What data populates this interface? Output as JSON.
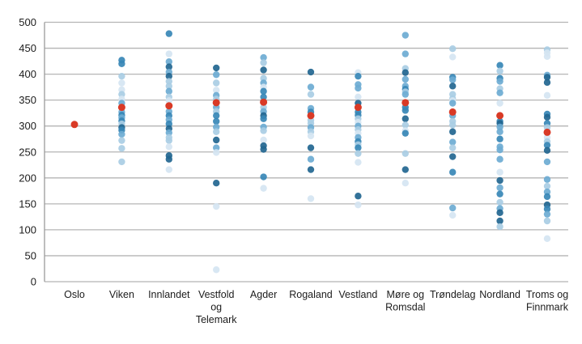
{
  "chart_data": {
    "type": "scatter",
    "title": "",
    "xlabel": "",
    "ylabel": "",
    "ylim": [
      0,
      500
    ],
    "yticks": [
      0,
      50,
      100,
      150,
      200,
      250,
      300,
      350,
      400,
      450,
      500
    ],
    "grid": true,
    "legend": false,
    "colors": {
      "palette": {
        "1": "#d5e5f2",
        "2": "#a9cde4",
        "3": "#6cabd3",
        "4": "#3787b6",
        "5": "#226690"
      },
      "mean": "#d93a26",
      "grid_line": "#b5b5b5",
      "axis_line": "#9b9b9b",
      "text": "#1c1c1c"
    },
    "categories": [
      {
        "label": "Oslo",
        "lines": [
          "Oslo"
        ]
      },
      {
        "label": "Viken",
        "lines": [
          "Viken"
        ]
      },
      {
        "label": "Innlandet",
        "lines": [
          "Innlandet"
        ]
      },
      {
        "label": "Vestfold og Telemark",
        "lines": [
          "Vestfold",
          "og",
          "Telemark"
        ]
      },
      {
        "label": "Agder",
        "lines": [
          "Agder"
        ]
      },
      {
        "label": "Rogaland",
        "lines": [
          "Rogaland"
        ]
      },
      {
        "label": "Vestland",
        "lines": [
          "Vestland"
        ]
      },
      {
        "label": "Møre og Romsdal",
        "lines": [
          "Møre og",
          "Romsdal"
        ]
      },
      {
        "label": "Trøndelag",
        "lines": [
          "Trøndelag"
        ]
      },
      {
        "label": "Nordland",
        "lines": [
          "Nordland"
        ]
      },
      {
        "label": "Troms og Finnmark",
        "lines": [
          "Troms og",
          "Finnmark"
        ]
      }
    ],
    "series": [
      {
        "name": "Oslo",
        "mean": 303,
        "points": []
      },
      {
        "name": "Viken",
        "mean": 336,
        "points": [
          [
            427,
            4
          ],
          [
            420,
            4
          ],
          [
            396,
            2
          ],
          [
            383,
            1
          ],
          [
            370,
            1
          ],
          [
            361,
            2
          ],
          [
            352,
            1
          ],
          [
            344,
            3
          ],
          [
            327,
            3
          ],
          [
            321,
            4
          ],
          [
            316,
            3
          ],
          [
            310,
            4
          ],
          [
            304,
            2
          ],
          [
            297,
            5
          ],
          [
            292,
            4
          ],
          [
            284,
            3
          ],
          [
            272,
            2
          ],
          [
            257,
            2
          ],
          [
            231,
            2
          ]
        ]
      },
      {
        "name": "Innlandet",
        "mean": 339,
        "points": [
          [
            478,
            4
          ],
          [
            439,
            1
          ],
          [
            424,
            3
          ],
          [
            414,
            5
          ],
          [
            404,
            3
          ],
          [
            396,
            5
          ],
          [
            386,
            2
          ],
          [
            377,
            2
          ],
          [
            367,
            3
          ],
          [
            356,
            2
          ],
          [
            349,
            1
          ],
          [
            328,
            3
          ],
          [
            320,
            4
          ],
          [
            312,
            3
          ],
          [
            304,
            4
          ],
          [
            295,
            5
          ],
          [
            287,
            3
          ],
          [
            278,
            2
          ],
          [
            272,
            2
          ],
          [
            260,
            1
          ],
          [
            243,
            5
          ],
          [
            236,
            5
          ],
          [
            216,
            1
          ]
        ]
      },
      {
        "name": "Vestfold og Telemark",
        "mean": 345,
        "points": [
          [
            412,
            5
          ],
          [
            399,
            3
          ],
          [
            383,
            2
          ],
          [
            369,
            1
          ],
          [
            359,
            3
          ],
          [
            352,
            2
          ],
          [
            336,
            3
          ],
          [
            328,
            2
          ],
          [
            320,
            4
          ],
          [
            309,
            4
          ],
          [
            298,
            3
          ],
          [
            289,
            2
          ],
          [
            273,
            5
          ],
          [
            258,
            3
          ],
          [
            249,
            1
          ],
          [
            190,
            5
          ],
          [
            145,
            1
          ],
          [
            23,
            1
          ]
        ]
      },
      {
        "name": "Agder",
        "mean": 346,
        "points": [
          [
            432,
            3
          ],
          [
            422,
            2
          ],
          [
            408,
            5
          ],
          [
            392,
            2
          ],
          [
            383,
            3
          ],
          [
            375,
            1
          ],
          [
            367,
            4
          ],
          [
            356,
            4
          ],
          [
            336,
            2
          ],
          [
            328,
            3
          ],
          [
            320,
            5
          ],
          [
            314,
            4
          ],
          [
            298,
            3
          ],
          [
            291,
            2
          ],
          [
            273,
            1
          ],
          [
            262,
            5
          ],
          [
            255,
            5
          ],
          [
            202,
            4
          ],
          [
            180,
            1
          ]
        ]
      },
      {
        "name": "Rogaland",
        "mean": 320,
        "points": [
          [
            404,
            5
          ],
          [
            375,
            3
          ],
          [
            361,
            2
          ],
          [
            334,
            3
          ],
          [
            327,
            4
          ],
          [
            311,
            2
          ],
          [
            305,
            2
          ],
          [
            297,
            3
          ],
          [
            289,
            2
          ],
          [
            281,
            1
          ],
          [
            258,
            5
          ],
          [
            236,
            3
          ],
          [
            216,
            5
          ],
          [
            160,
            1
          ]
        ]
      },
      {
        "name": "Vestland",
        "mean": 336,
        "points": [
          [
            403,
            1
          ],
          [
            396,
            4
          ],
          [
            380,
            3
          ],
          [
            373,
            3
          ],
          [
            356,
            1
          ],
          [
            344,
            5
          ],
          [
            327,
            4
          ],
          [
            321,
            4
          ],
          [
            314,
            2
          ],
          [
            307,
            1
          ],
          [
            300,
            3
          ],
          [
            293,
            2
          ],
          [
            286,
            1
          ],
          [
            278,
            3
          ],
          [
            270,
            4
          ],
          [
            264,
            2
          ],
          [
            258,
            4
          ],
          [
            247,
            2
          ],
          [
            230,
            1
          ],
          [
            165,
            5
          ],
          [
            148,
            1
          ]
        ]
      },
      {
        "name": "Møre og Romsdal",
        "mean": 345,
        "points": [
          [
            475,
            3
          ],
          [
            439,
            3
          ],
          [
            411,
            2
          ],
          [
            403,
            5
          ],
          [
            390,
            3
          ],
          [
            377,
            3
          ],
          [
            371,
            4
          ],
          [
            366,
            2
          ],
          [
            361,
            3
          ],
          [
            336,
            4
          ],
          [
            330,
            4
          ],
          [
            314,
            5
          ],
          [
            302,
            2
          ],
          [
            291,
            1
          ],
          [
            286,
            4
          ],
          [
            247,
            2
          ],
          [
            216,
            5
          ],
          [
            190,
            1
          ]
        ]
      },
      {
        "name": "Trøndelag",
        "mean": 327,
        "points": [
          [
            449,
            2
          ],
          [
            433,
            1
          ],
          [
            394,
            4
          ],
          [
            389,
            3
          ],
          [
            377,
            5
          ],
          [
            361,
            2
          ],
          [
            353,
            2
          ],
          [
            349,
            1
          ],
          [
            344,
            3
          ],
          [
            320,
            3
          ],
          [
            309,
            2
          ],
          [
            302,
            2
          ],
          [
            289,
            5
          ],
          [
            269,
            3
          ],
          [
            258,
            2
          ],
          [
            241,
            5
          ],
          [
            211,
            4
          ],
          [
            142,
            3
          ],
          [
            128,
            1
          ]
        ]
      },
      {
        "name": "Nordland",
        "mean": 320,
        "points": [
          [
            417,
            4
          ],
          [
            406,
            2
          ],
          [
            392,
            4
          ],
          [
            386,
            3
          ],
          [
            372,
            2
          ],
          [
            364,
            3
          ],
          [
            344,
            1
          ],
          [
            309,
            4
          ],
          [
            305,
            5
          ],
          [
            298,
            3
          ],
          [
            289,
            3
          ],
          [
            275,
            4
          ],
          [
            260,
            3
          ],
          [
            254,
            3
          ],
          [
            236,
            3
          ],
          [
            211,
            1
          ],
          [
            195,
            5
          ],
          [
            181,
            3
          ],
          [
            169,
            4
          ],
          [
            153,
            2
          ],
          [
            141,
            3
          ],
          [
            133,
            5
          ],
          [
            117,
            5
          ],
          [
            106,
            2
          ]
        ]
      },
      {
        "name": "Troms og Finnmark",
        "mean": 288,
        "points": [
          [
            447,
            2
          ],
          [
            441,
            1
          ],
          [
            434,
            1
          ],
          [
            398,
            3
          ],
          [
            394,
            5
          ],
          [
            384,
            5
          ],
          [
            359,
            1
          ],
          [
            323,
            4
          ],
          [
            317,
            5
          ],
          [
            305,
            4
          ],
          [
            297,
            2
          ],
          [
            278,
            1
          ],
          [
            270,
            2
          ],
          [
            263,
            4
          ],
          [
            253,
            5
          ],
          [
            231,
            3
          ],
          [
            197,
            3
          ],
          [
            184,
            2
          ],
          [
            173,
            3
          ],
          [
            164,
            4
          ],
          [
            148,
            5
          ],
          [
            140,
            4
          ],
          [
            130,
            3
          ],
          [
            117,
            2
          ],
          [
            83,
            1
          ]
        ]
      }
    ]
  }
}
